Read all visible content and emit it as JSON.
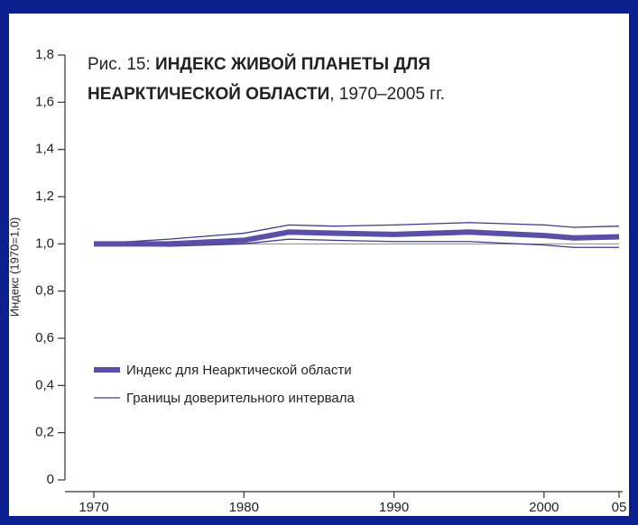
{
  "chart_data": {
    "type": "line",
    "title_lines": [
      [
        {
          "text": "Рис. 15: ",
          "bold": false
        },
        {
          "text": "ИНДЕКС ЖИВОЙ ПЛАНЕТЫ ДЛЯ",
          "bold": true
        }
      ],
      [
        {
          "text": "НЕАРКТИЧЕСКОЙ ОБЛАСТИ",
          "bold": true
        },
        {
          "text": ", 1970–2005 гг.",
          "bold": false
        }
      ]
    ],
    "ylabel": "Индекс (1970=1,0)",
    "x": [
      1970,
      1975,
      1980,
      1983,
      1986,
      1990,
      1995,
      2000,
      2002,
      2005
    ],
    "series": [
      {
        "name": "Индекс для Неарктической области",
        "color": "#5a4ea6",
        "values": [
          1.0,
          1.0,
          1.015,
          1.05,
          1.045,
          1.04,
          1.05,
          1.035,
          1.025,
          1.03
        ]
      }
    ],
    "interval": {
      "name": "Границы доверительного интервала",
      "color": "#3b3a8c",
      "upper": [
        1.0,
        1.02,
        1.045,
        1.08,
        1.075,
        1.08,
        1.09,
        1.08,
        1.07,
        1.075
      ],
      "lower": [
        1.0,
        0.99,
        1.0,
        1.02,
        1.015,
        1.01,
        1.01,
        0.995,
        0.985,
        0.985
      ]
    },
    "xlim": [
      1970,
      2005
    ],
    "xticks": [
      1970,
      1980,
      1990,
      2000,
      {
        "value": 2005,
        "label": "05"
      }
    ],
    "ylim": [
      0,
      1.8
    ],
    "yticks": [
      0,
      {
        "value": 0.2,
        "label": "0,2"
      },
      {
        "value": 0.4,
        "label": "0,4"
      },
      {
        "value": 0.6,
        "label": "0,6"
      },
      {
        "value": 0.8,
        "label": "0,8"
      },
      {
        "value": 1.0,
        "label": "1,0"
      },
      {
        "value": 1.2,
        "label": "1,2"
      },
      {
        "value": 1.4,
        "label": "1,4"
      },
      {
        "value": 1.6,
        "label": "1,6"
      },
      {
        "value": 1.8,
        "label": "1,8"
      }
    ],
    "reference_line": 1.0
  }
}
